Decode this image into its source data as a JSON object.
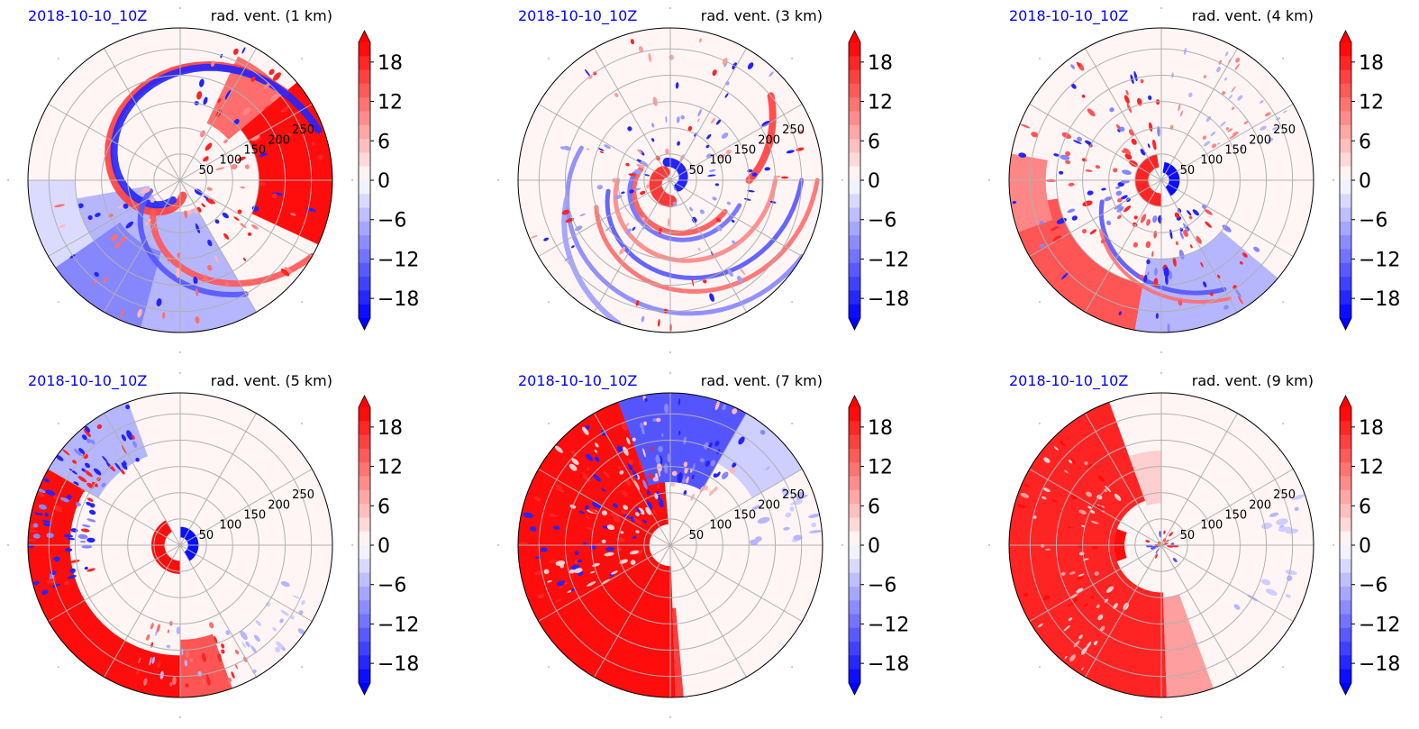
{
  "figure": {
    "colors": {
      "positive": "#ff0000",
      "negative": "#0000ff",
      "neutral": "#ffffff",
      "grid": "#b0b0b0",
      "date_text": "#0000ff"
    },
    "colormap": "bwr"
  },
  "chart_data": [
    {
      "type": "heatmap",
      "projection": "polar",
      "date": "2018-10-10_10Z",
      "title": "rad. vent. (1 km)",
      "radial_ticks": [
        "50",
        "100",
        "150",
        "200",
        "250"
      ],
      "radial_ticks_values": [
        50,
        100,
        150,
        200,
        250
      ],
      "rmax": 290,
      "grid": true,
      "colorbar": {
        "ticks": [
          "18",
          "12",
          "6",
          "0",
          "−6",
          "−12",
          "−18"
        ],
        "tick_values": [
          18,
          12,
          6,
          0,
          -6,
          -12,
          -18
        ],
        "range": [
          -21,
          21
        ],
        "extend": "both",
        "levels": 20
      },
      "pattern": "spiral-bands"
    },
    {
      "type": "heatmap",
      "projection": "polar",
      "date": "2018-10-10_10Z",
      "title": "rad. vent. (3 km)",
      "radial_ticks": [
        "50",
        "100",
        "150",
        "200",
        "250"
      ],
      "radial_ticks_values": [
        50,
        100,
        150,
        200,
        250
      ],
      "rmax": 290,
      "grid": true,
      "colorbar": {
        "ticks": [
          "18",
          "12",
          "6",
          "0",
          "−6",
          "−12",
          "−18"
        ],
        "tick_values": [
          18,
          12,
          6,
          0,
          -6,
          -12,
          -18
        ],
        "range": [
          -21,
          21
        ],
        "extend": "both",
        "levels": 20
      },
      "pattern": "rings"
    },
    {
      "type": "heatmap",
      "projection": "polar",
      "date": "2018-10-10_10Z",
      "title": "rad. vent. (4 km)",
      "radial_ticks": [
        "50",
        "100",
        "150",
        "200",
        "250"
      ],
      "radial_ticks_values": [
        50,
        100,
        150,
        200,
        250
      ],
      "rmax": 290,
      "grid": true,
      "colorbar": {
        "ticks": [
          "18",
          "12",
          "6",
          "0",
          "−6",
          "−12",
          "−18"
        ],
        "tick_values": [
          18,
          12,
          6,
          0,
          -6,
          -12,
          -18
        ],
        "range": [
          -21,
          21
        ],
        "extend": "both",
        "levels": 20
      },
      "pattern": "sw-red"
    },
    {
      "type": "heatmap",
      "projection": "polar",
      "date": "2018-10-10_10Z",
      "title": "rad. vent. (5 km)",
      "radial_ticks": [
        "50",
        "100",
        "150",
        "200",
        "250"
      ],
      "radial_ticks_values": [
        50,
        100,
        150,
        200,
        250
      ],
      "rmax": 290,
      "grid": true,
      "colorbar": {
        "ticks": [
          "18",
          "12",
          "6",
          "0",
          "−6",
          "−12",
          "−18"
        ],
        "tick_values": [
          18,
          12,
          6,
          0,
          -6,
          -12,
          -18
        ],
        "range": [
          -21,
          21
        ],
        "extend": "both",
        "levels": 20
      },
      "pattern": "west-red"
    },
    {
      "type": "heatmap",
      "projection": "polar",
      "date": "2018-10-10_10Z",
      "title": "rad. vent. (7 km)",
      "radial_ticks": [
        "50",
        "100",
        "150",
        "200",
        "250"
      ],
      "radial_ticks_values": [
        50,
        100,
        150,
        200,
        250
      ],
      "rmax": 290,
      "grid": true,
      "colorbar": {
        "ticks": [
          "18",
          "12",
          "6",
          "0",
          "−6",
          "−12",
          "−18"
        ],
        "tick_values": [
          18,
          12,
          6,
          0,
          -6,
          -12,
          -18
        ],
        "range": [
          -21,
          21
        ],
        "extend": "both",
        "levels": 20
      },
      "pattern": "west-half-red"
    },
    {
      "type": "heatmap",
      "projection": "polar",
      "date": "2018-10-10_10Z",
      "title": "rad. vent. (9 km)",
      "radial_ticks": [
        "50",
        "100",
        "150",
        "200",
        "250"
      ],
      "radial_ticks_values": [
        50,
        100,
        150,
        200,
        250
      ],
      "rmax": 290,
      "grid": true,
      "colorbar": {
        "ticks": [
          "18",
          "12",
          "6",
          "0",
          "−6",
          "−12",
          "−18"
        ],
        "tick_values": [
          18,
          12,
          6,
          0,
          -6,
          -12,
          -18
        ],
        "range": [
          -21,
          21
        ],
        "extend": "both",
        "levels": 20
      },
      "pattern": "west-red-faded"
    }
  ]
}
